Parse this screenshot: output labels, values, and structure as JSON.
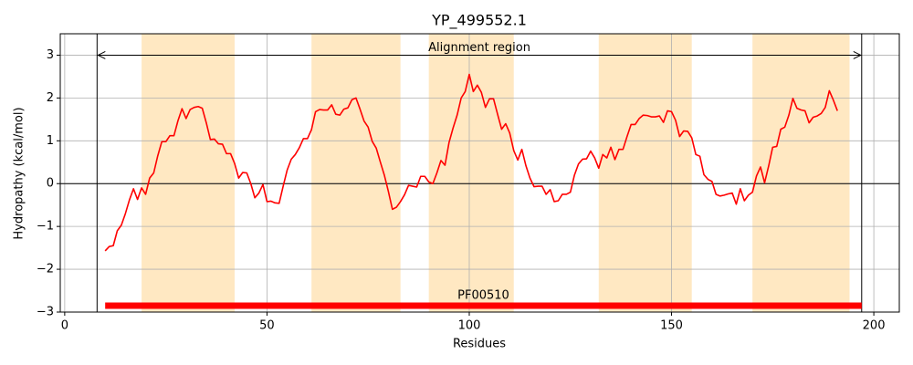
{
  "chart_data": {
    "type": "line",
    "title": "YP_499552.1",
    "xlabel": "Residues",
    "ylabel": "Hydropathy (kcal/mol)",
    "x": [
      10,
      11,
      12,
      13,
      14,
      15,
      16,
      17,
      18,
      19,
      20,
      21,
      22,
      23,
      24,
      25,
      26,
      27,
      28,
      29,
      30,
      31,
      32,
      33,
      34,
      35,
      36,
      37,
      38,
      39,
      40,
      41,
      42,
      43,
      44,
      45,
      46,
      47,
      48,
      49,
      50,
      51,
      52,
      53,
      54,
      55,
      56,
      57,
      58,
      59,
      60,
      61,
      62,
      63,
      64,
      65,
      66,
      67,
      68,
      69,
      70,
      71,
      72,
      73,
      74,
      75,
      76,
      77,
      78,
      79,
      80,
      81,
      82,
      83,
      84,
      85,
      86,
      87,
      88,
      89,
      90,
      91,
      92,
      93,
      94,
      95,
      96,
      97,
      98,
      99,
      100,
      101,
      102,
      103,
      104,
      105,
      106,
      107,
      108,
      109,
      110,
      111,
      112,
      113,
      114,
      115,
      116,
      117,
      118,
      119,
      120,
      121,
      122,
      123,
      124,
      125,
      126,
      127,
      128,
      129,
      130,
      131,
      132,
      133,
      134,
      135,
      136,
      137,
      138,
      139,
      140,
      141,
      142,
      143,
      144,
      145,
      146,
      147,
      148,
      149,
      150,
      151,
      152,
      153,
      154,
      155,
      156,
      157,
      158,
      159,
      160,
      161,
      162,
      163,
      164,
      165,
      166,
      167,
      168,
      169,
      170,
      171,
      172,
      173,
      174,
      175,
      176,
      177,
      178,
      179,
      180,
      181,
      182,
      183,
      184,
      185,
      186,
      187,
      188,
      189,
      190,
      191
    ],
    "values": [
      -1.57,
      -1.47,
      -1.45,
      -1.1,
      -0.97,
      -0.7,
      -0.38,
      -0.12,
      -0.37,
      -0.1,
      -0.25,
      0.13,
      0.25,
      0.65,
      0.98,
      0.98,
      1.12,
      1.12,
      1.47,
      1.75,
      1.52,
      1.73,
      1.78,
      1.8,
      1.76,
      1.42,
      1.03,
      1.04,
      0.93,
      0.92,
      0.7,
      0.7,
      0.47,
      0.13,
      0.26,
      0.25,
      0.0,
      -0.33,
      -0.22,
      -0.02,
      -0.42,
      -0.41,
      -0.45,
      -0.46,
      -0.06,
      0.32,
      0.57,
      0.68,
      0.84,
      1.05,
      1.05,
      1.26,
      1.68,
      1.73,
      1.72,
      1.72,
      1.84,
      1.62,
      1.6,
      1.74,
      1.77,
      1.96,
      2.0,
      1.74,
      1.46,
      1.32,
      0.99,
      0.83,
      0.51,
      0.2,
      -0.18,
      -0.6,
      -0.55,
      -0.42,
      -0.26,
      -0.04,
      -0.06,
      -0.08,
      0.17,
      0.17,
      0.04,
      0.0,
      0.25,
      0.54,
      0.43,
      0.96,
      1.3,
      1.6,
      2.0,
      2.15,
      2.55,
      2.15,
      2.3,
      2.13,
      1.78,
      1.98,
      1.98,
      1.62,
      1.27,
      1.4,
      1.18,
      0.77,
      0.55,
      0.8,
      0.42,
      0.13,
      -0.07,
      -0.06,
      -0.06,
      -0.25,
      -0.14,
      -0.42,
      -0.4,
      -0.25,
      -0.25,
      -0.2,
      0.2,
      0.46,
      0.57,
      0.58,
      0.76,
      0.6,
      0.36,
      0.68,
      0.6,
      0.85,
      0.56,
      0.8,
      0.8,
      1.1,
      1.38,
      1.38,
      1.52,
      1.6,
      1.59,
      1.56,
      1.56,
      1.58,
      1.43,
      1.7,
      1.68,
      1.48,
      1.1,
      1.23,
      1.22,
      1.07,
      0.68,
      0.64,
      0.21,
      0.1,
      0.05,
      -0.25,
      -0.29,
      -0.27,
      -0.24,
      -0.22,
      -0.48,
      -0.12,
      -0.4,
      -0.27,
      -0.2,
      0.18,
      0.39,
      0.02,
      0.41,
      0.85,
      0.87,
      1.27,
      1.32,
      1.6,
      1.99,
      1.76,
      1.72,
      1.7,
      1.42,
      1.55,
      1.58,
      1.64,
      1.78,
      2.17,
      1.95,
      1.7
    ],
    "color": "#ff0000",
    "regions": [
      [
        19,
        42
      ],
      [
        61,
        83
      ],
      [
        90,
        111
      ],
      [
        132,
        155
      ],
      [
        170,
        194
      ]
    ],
    "region_color": "#ffe8c2",
    "vlines": [
      8,
      197
    ],
    "hlines": [
      0
    ],
    "alignment": {
      "label": "Alignment region",
      "x": [
        8,
        197
      ],
      "y": 3
    },
    "domain": {
      "label": "PF00510",
      "x": [
        10,
        197
      ],
      "y": -2.85,
      "color": "#ff0000"
    },
    "xlim": [
      -1.1,
      206.3
    ],
    "ylim": [
      -3,
      3.5
    ],
    "xticks": [
      0,
      50,
      100,
      150,
      200
    ],
    "yticks": [
      {
        "value": -3,
        "label": "−3"
      },
      {
        "value": -2,
        "label": "−2"
      },
      {
        "value": -1,
        "label": "−1"
      },
      0,
      1,
      2,
      3
    ],
    "grid": true
  }
}
